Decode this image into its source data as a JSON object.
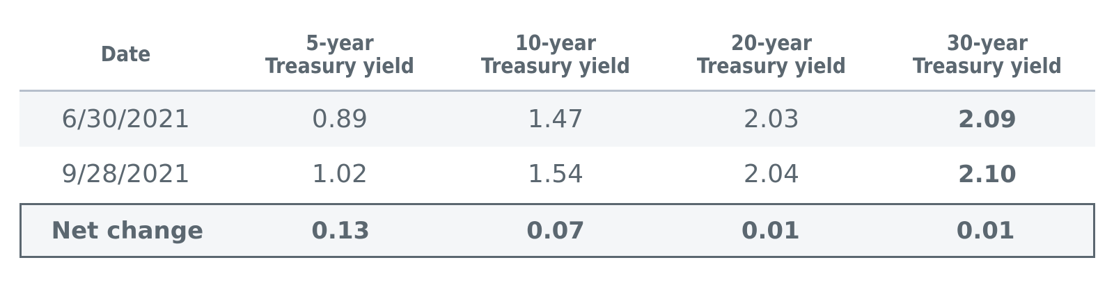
{
  "table": {
    "headers": [
      {
        "line1": "Date",
        "line2": ""
      },
      {
        "line1": "5-year",
        "line2": "Treasury yield"
      },
      {
        "line1": "10-year",
        "line2": "Treasury yield"
      },
      {
        "line1": "20-year",
        "line2": "Treasury yield"
      },
      {
        "line1": "30-year",
        "line2": "Treasury yield"
      }
    ],
    "rows": [
      {
        "date": "6/30/2021",
        "y5": "0.89",
        "y10": "1.47",
        "y20": "2.03",
        "y30": "2.09"
      },
      {
        "date": "9/28/2021",
        "y5": "1.02",
        "y10": "1.54",
        "y20": "2.04",
        "y30": "2.10"
      }
    ],
    "net_change": {
      "label": "Net change",
      "y5": "0.13",
      "y10": "0.07",
      "y20": "0.01",
      "y30": "0.01"
    }
  }
}
